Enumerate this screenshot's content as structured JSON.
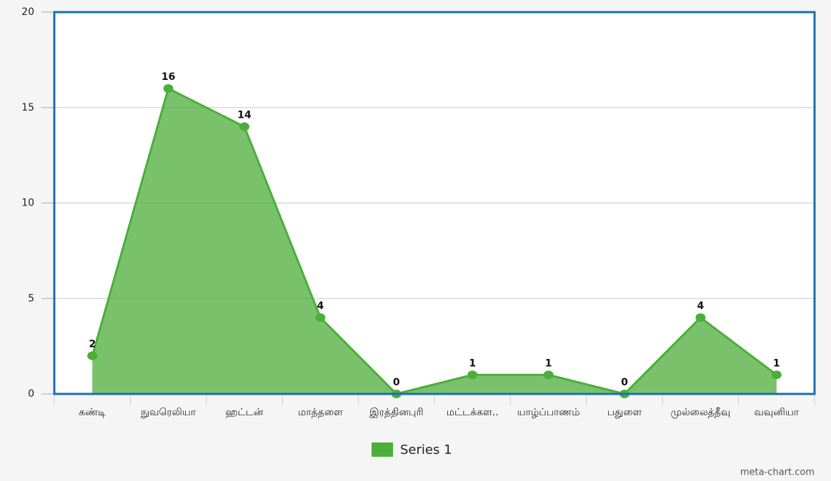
{
  "chart_data": {
    "type": "area",
    "categories": [
      "கண்டி",
      "நுவரெலியா",
      "ஹட்டன்",
      "மாத்தளை",
      "இரத்தினபுரி",
      "மட்டக்கள..",
      "யாழ்ப்பாணம்",
      "பதுளை",
      "முல்லைத்தீவு",
      "வவுனியா"
    ],
    "series": [
      {
        "name": "Series 1",
        "color": "#4cae3a",
        "values": [
          2,
          16,
          14,
          4,
          0,
          1,
          1,
          0,
          4,
          1
        ]
      }
    ],
    "ylim": [
      0,
      20
    ],
    "yticks": [
      0,
      5,
      10,
      15,
      20
    ],
    "grid": true,
    "legend": "bottom",
    "credit": "meta-chart.com"
  }
}
